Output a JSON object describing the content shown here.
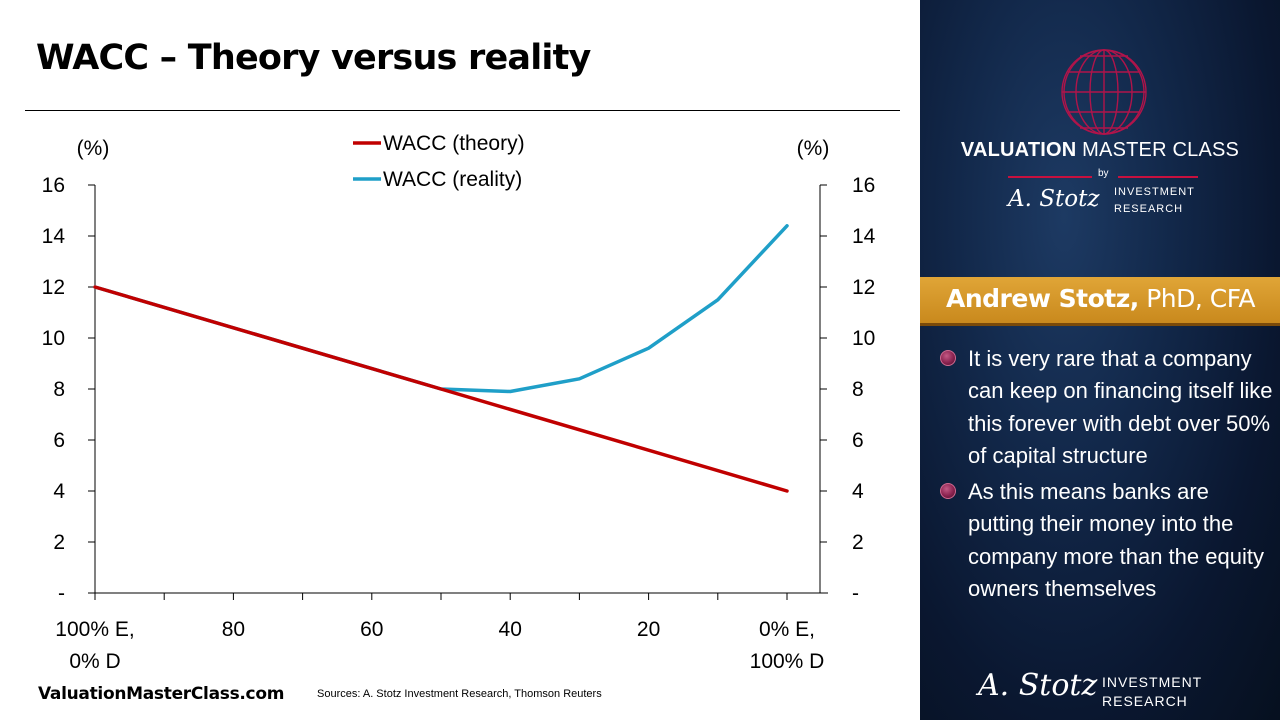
{
  "slide": {
    "title": "WACC – Theory versus reality",
    "website": "ValuationMasterClass.com",
    "sources": "Sources: A. Stotz Investment Research, Thomson Reuters"
  },
  "chart_data": {
    "type": "line",
    "x_positions": [
      100,
      90,
      80,
      70,
      60,
      50,
      40,
      30,
      20,
      10,
      0
    ],
    "x_tick_labels": [
      {
        "x": 100,
        "line1": "100% E,",
        "line2": "0% D"
      },
      {
        "x": 80,
        "line1": "80",
        "line2": ""
      },
      {
        "x": 60,
        "line1": "60",
        "line2": ""
      },
      {
        "x": 40,
        "line1": "40",
        "line2": ""
      },
      {
        "x": 20,
        "line1": "20",
        "line2": ""
      },
      {
        "x": 0,
        "line1": "0% E,",
        "line2": "100% D"
      }
    ],
    "series": [
      {
        "name": "WACC (theory)",
        "color": "#c00000",
        "x": [
          100,
          50,
          0
        ],
        "y": [
          12,
          8,
          4
        ]
      },
      {
        "name": "WACC (reality)",
        "color": "#1f9fc8",
        "x": [
          100,
          50,
          40,
          30,
          20,
          10,
          0
        ],
        "y": [
          12,
          8,
          7.9,
          8.4,
          9.6,
          11.5,
          14.4
        ]
      }
    ],
    "y_axis_left": {
      "unit_label": "(%)",
      "ticks": [
        "-",
        "2",
        "4",
        "6",
        "8",
        "10",
        "12",
        "14",
        "16"
      ]
    },
    "y_axis_right": {
      "unit_label": "(%)",
      "ticks": [
        "-",
        "2",
        "4",
        "6",
        "8",
        "10",
        "12",
        "14",
        "16"
      ]
    },
    "ylim": [
      0,
      16
    ],
    "xlim": [
      100,
      0
    ],
    "grid": false,
    "legend_position": "top-center"
  },
  "panel": {
    "brand_bold": "VALUATION",
    "brand_rest": " MASTER CLASS",
    "brand_by": "by",
    "signature": "A. Stotz",
    "signature_sub_line1": "INVESTMENT",
    "signature_sub_line2": "RESEARCH",
    "presenter_name": "Andrew Stotz,",
    "presenter_credentials": " PhD, CFA",
    "bullets": [
      "It is very rare that a company can keep on financing itself like this forever with debt over 50% of capital structure",
      "As this means banks are putting their money into the company more than the equity owners themselves"
    ],
    "footer_signature": "A. Stotz",
    "footer_sub_line1": "INVESTMENT",
    "footer_sub_line2": "RESEARCH",
    "accent_color": "#c8103e",
    "gold_color": "#d89a2c"
  }
}
